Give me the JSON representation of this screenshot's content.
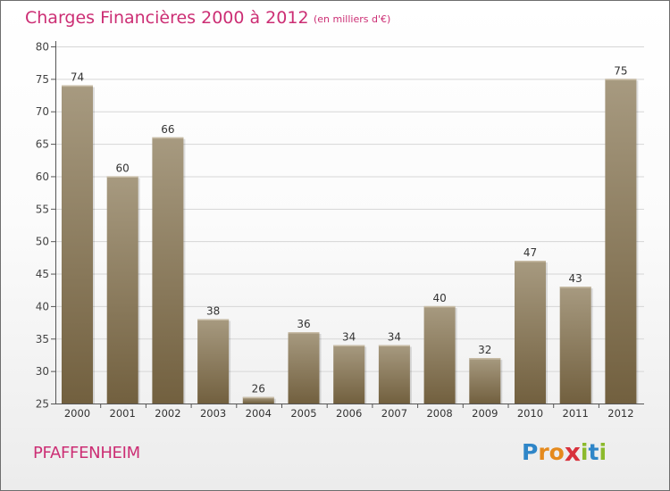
{
  "title": "Charges Financières 2000 à 2012",
  "subtitle": "(en milliers d'€)",
  "commune": "PFAFFENHEIM",
  "logo": {
    "letters": [
      "P",
      "r",
      "o",
      "x",
      "i",
      "t",
      "i"
    ],
    "colors": [
      "#2f86c8",
      "#e58a1d",
      "#e58a1d",
      "#d8323c",
      "#8cba2c",
      "#2f86c8",
      "#8cba2c"
    ]
  },
  "colors": {
    "accent": "#cc2e74",
    "bar_top": "#a79a80",
    "bar_bottom": "#72603f",
    "grid": "#d6d6d6"
  },
  "chart_data": {
    "type": "bar",
    "title": "Charges Financières 2000 à 2012",
    "subtitle": "(en milliers d'€)",
    "categories": [
      "2000",
      "2001",
      "2002",
      "2003",
      "2004",
      "2005",
      "2006",
      "2007",
      "2008",
      "2009",
      "2010",
      "2011",
      "2012"
    ],
    "values": [
      74,
      60,
      66,
      38,
      26,
      36,
      34,
      34,
      40,
      32,
      47,
      43,
      75
    ],
    "ylim": [
      25,
      80
    ],
    "yticks": [
      25,
      30,
      35,
      40,
      45,
      50,
      55,
      60,
      65,
      70,
      75,
      80
    ],
    "grid": true,
    "xlabel": "",
    "ylabel": ""
  }
}
